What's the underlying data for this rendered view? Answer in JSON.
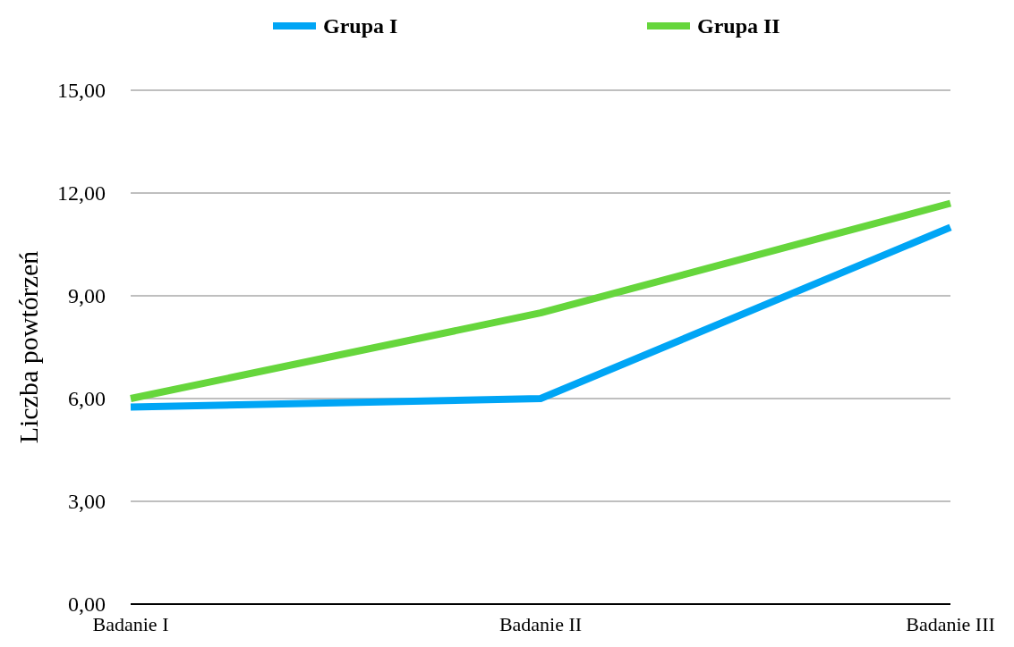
{
  "chart_data": {
    "type": "line",
    "ylabel": "Liczba powtórzeń",
    "categories": [
      "Badanie I",
      "Badanie II",
      "Badanie III"
    ],
    "series": [
      {
        "name": "Grupa I",
        "color": "#00a5f5",
        "values": [
          5.75,
          6.0,
          11.0
        ]
      },
      {
        "name": "Grupa II",
        "color": "#66d63c",
        "values": [
          6.0,
          8.5,
          11.7
        ]
      }
    ],
    "ylim": [
      0,
      15
    ],
    "yticks": [
      {
        "value": 0,
        "label": "0,00"
      },
      {
        "value": 3,
        "label": "3,00"
      },
      {
        "value": 6,
        "label": "6,00"
      },
      {
        "value": 9,
        "label": "9,00"
      },
      {
        "value": 12,
        "label": "12,00"
      },
      {
        "value": 15,
        "label": "15,00"
      }
    ],
    "grid": "y",
    "legend": "top",
    "marker": "none",
    "line_style": "solid"
  }
}
